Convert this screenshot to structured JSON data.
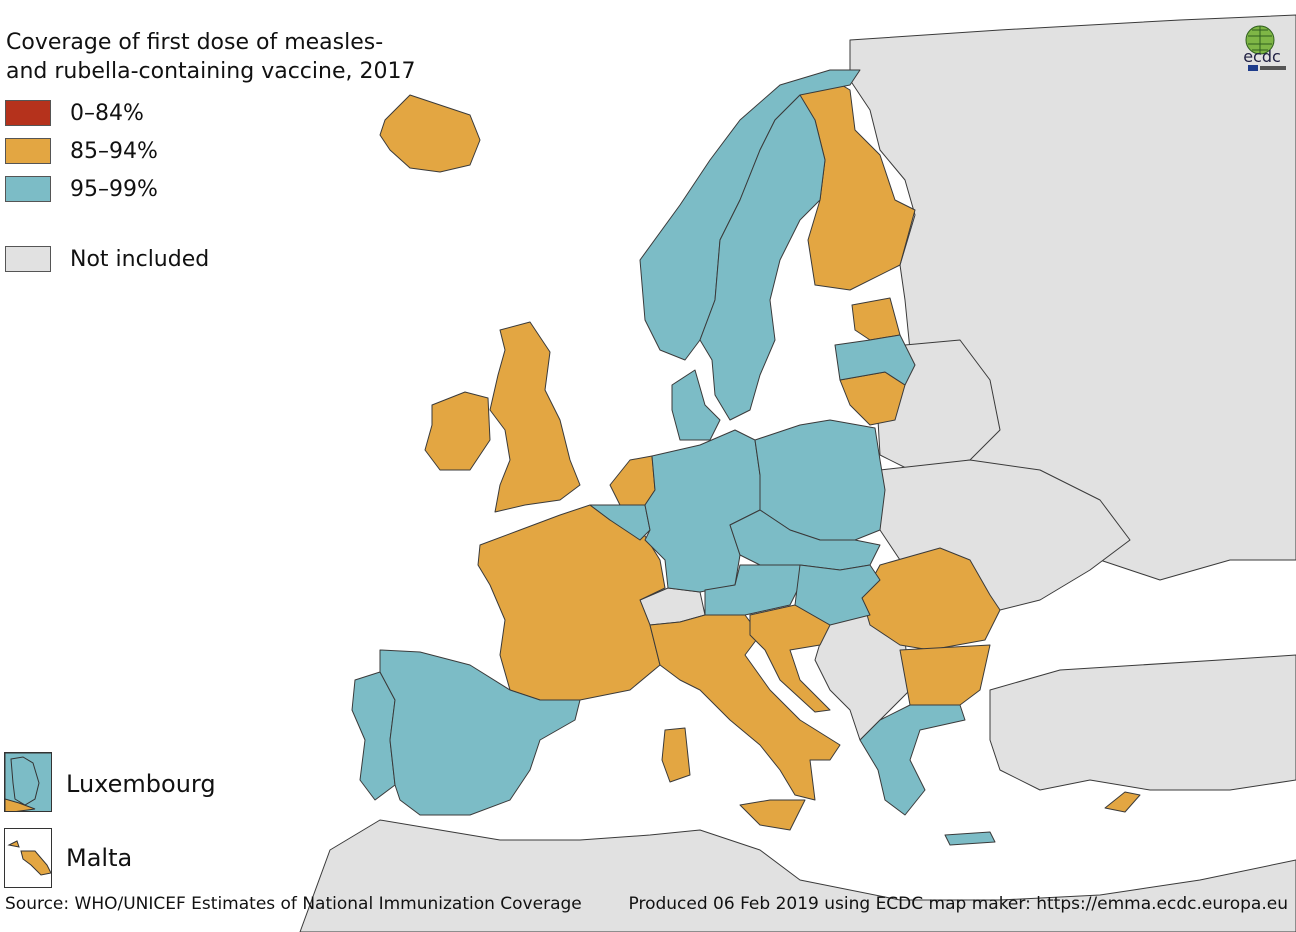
{
  "title": {
    "line1": "Coverage of first dose of measles-",
    "line2": "and rubella-containing vaccine, 2017"
  },
  "colors": {
    "band_0_84": "#b5321c",
    "band_85_94": "#e3a642",
    "band_95_99": "#7cbcc6",
    "not_included": "#e1e1e1",
    "sea": "#ffffff",
    "border": "#3a3a3a"
  },
  "legend": {
    "items": [
      {
        "label": "0–84%",
        "color": "#b5321c"
      },
      {
        "label": "85–94%",
        "color": "#e3a642"
      },
      {
        "label": "95–99%",
        "color": "#7cbcc6"
      },
      {
        "label": "Not included",
        "color": "#e1e1e1"
      }
    ]
  },
  "insets": [
    {
      "label": "Luxembourg"
    },
    {
      "label": "Malta"
    }
  ],
  "logo": {
    "text": "ecdc",
    "icon": "ecdc-globe-logo-icon"
  },
  "footer": {
    "source": "Source: WHO/UNICEF Estimates of National Immunization Coverage",
    "produced": "Produced 06 Feb 2019 using ECDC map maker: https://emma.ecdc.europa.eu"
  },
  "countries": {
    "band_85_94": [
      "Iceland",
      "Ireland",
      "United Kingdom",
      "Netherlands",
      "France",
      "Italy",
      "Finland",
      "Estonia",
      "Lithuania",
      "Slovenia",
      "Croatia",
      "Romania",
      "Bulgaria",
      "Cyprus",
      "Malta"
    ],
    "band_95_99": [
      "Norway",
      "Sweden",
      "Denmark",
      "Belgium",
      "Luxembourg",
      "Germany",
      "Poland",
      "Czechia",
      "Slovakia",
      "Austria",
      "Hungary",
      "Portugal",
      "Spain",
      "Greece",
      "Latvia"
    ],
    "not_included": [
      "Switzerland",
      "Russia",
      "Belarus",
      "Ukraine",
      "Moldova",
      "Serbia",
      "Bosnia and Herzegovina",
      "Montenegro",
      "Albania",
      "North Macedonia",
      "Kosovo",
      "Turkey",
      "Morocco",
      "Algeria",
      "Tunisia"
    ]
  }
}
